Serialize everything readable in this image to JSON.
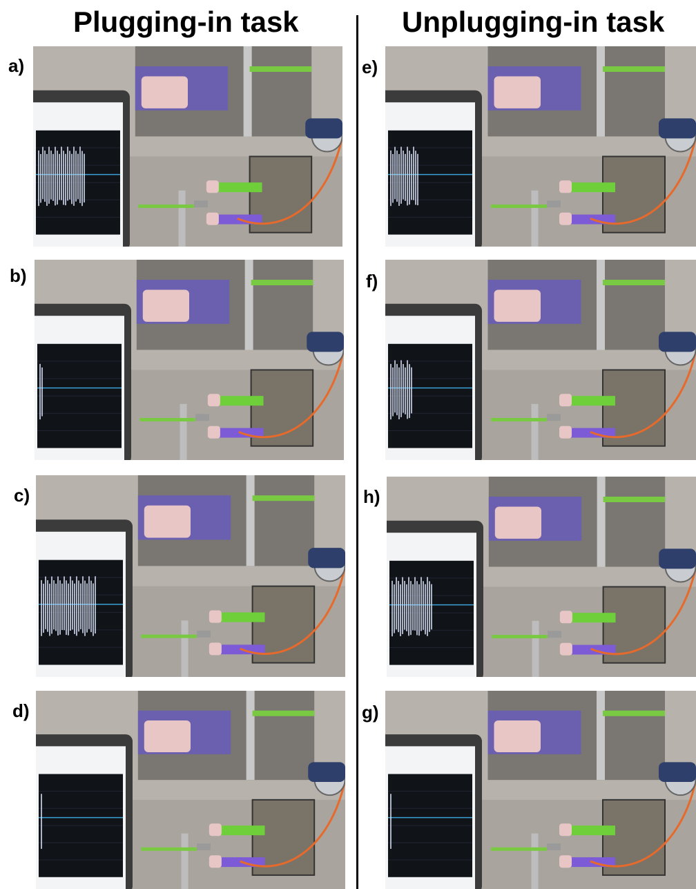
{
  "headings": {
    "left": "Plugging-in task",
    "right": "Unplugging-in task"
  },
  "panels": [
    {
      "label": "a)",
      "waveform": 0.75
    },
    {
      "label": "b)",
      "waveform": 0.05
    },
    {
      "label": "c)",
      "waveform": 0.9
    },
    {
      "label": "d)",
      "waveform": 0.02
    },
    {
      "label": "e)",
      "waveform": 0.45
    },
    {
      "label": "f)",
      "waveform": 0.35
    },
    {
      "label": "h)",
      "waveform": 0.65
    },
    {
      "label": "g)",
      "waveform": 0.02
    }
  ],
  "colors": {
    "background": "#b7b3ac",
    "screen": "#101418",
    "gripper_green": "#6fcf3a",
    "gripper_purple": "#7d5ad6",
    "pad_pink": "#e9c6c6",
    "cable_orange": "#e66a2c",
    "fiber_green": "#7ac943",
    "gripper_body": "#7a7368"
  }
}
